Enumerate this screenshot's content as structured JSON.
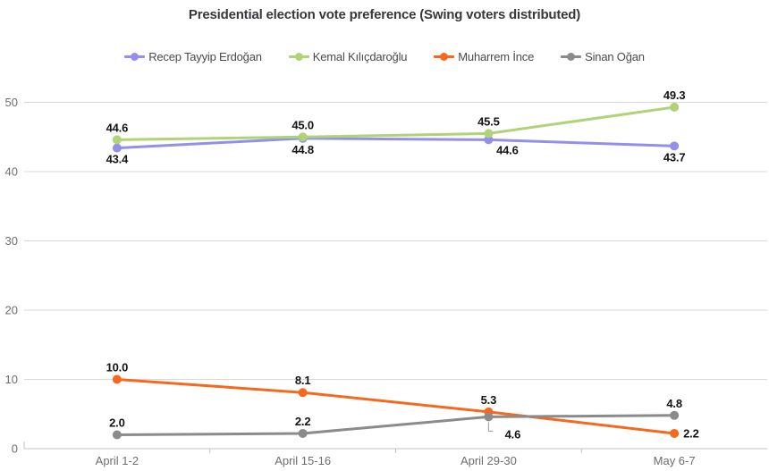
{
  "title": "Presidential election vote preference (Swing voters distributed)",
  "chart_data": {
    "type": "line",
    "title": "Presidential election vote preference (Swing voters distributed)",
    "categories": [
      "April 1-2",
      "April 15-16",
      "April 29-30",
      "May 6-7"
    ],
    "series": [
      {
        "name": "Recep Tayyip Erdoğan",
        "color": "#9390ea",
        "values": [
          43.4,
          44.8,
          44.6,
          43.7
        ],
        "label_placements": [
          "below",
          "below",
          "below-right",
          "below"
        ]
      },
      {
        "name": "Kemal Kılıçdaroğlu",
        "color": "#b1d377",
        "values": [
          44.6,
          45.0,
          45.5,
          49.3
        ],
        "label_placements": [
          "above",
          "above",
          "above",
          "above"
        ]
      },
      {
        "name": "Muharrem İnce",
        "color": "#f4691e",
        "values": [
          10.0,
          8.1,
          5.3,
          2.2
        ],
        "label_placements": [
          "above",
          "above",
          "above",
          "right"
        ]
      },
      {
        "name": "Sinan Oğan",
        "color": "#8b8b8b",
        "values": [
          2.0,
          2.2,
          4.6,
          4.8
        ],
        "label_placements": [
          "above",
          "above",
          "below-leader",
          "above"
        ]
      }
    ],
    "ylim": [
      0,
      50
    ],
    "yticks": [
      0,
      10,
      20,
      30,
      40,
      50
    ],
    "xlabel": "",
    "ylabel": "",
    "grid": "horizontal",
    "legend_position": "top",
    "label_decimals": 1,
    "axis_label_color": "#6e6e6e",
    "grid_color": "#d9d9d9",
    "axis_line_color": "#c2c2c2",
    "data_label_color": "#141414"
  }
}
